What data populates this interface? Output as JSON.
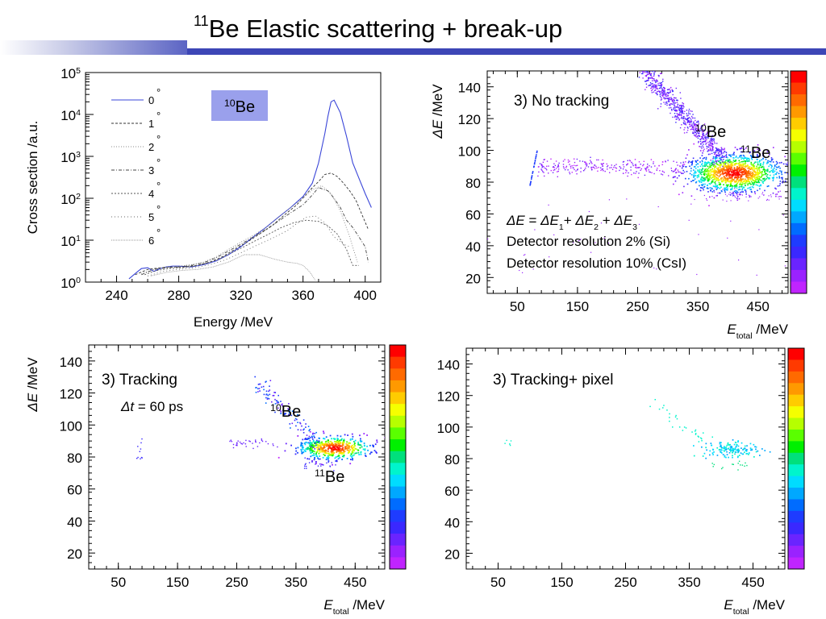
{
  "slide": {
    "title_sup": "11",
    "title_text": "Be Elastic scattering + break-up"
  },
  "colors": {
    "accent_band": "#3d46b6",
    "legend_box_bg": "#9aa0ec",
    "series0": "#3a46d8",
    "palette": [
      "#ff0000",
      "#ff3a00",
      "#ff6a00",
      "#ff9900",
      "#ffcc00",
      "#f5ff00",
      "#b6ff00",
      "#5aff00",
      "#00f000",
      "#00e07c",
      "#00f4cc",
      "#00dcff",
      "#00a8ff",
      "#006cff",
      "#1e3cff",
      "#3a28ff",
      "#6a24ff",
      "#9a22ff",
      "#c024ff"
    ]
  },
  "chart_data": [
    {
      "type": "line",
      "id": "cross-section",
      "xlabel": "Energy  /MeV",
      "ylabel": "Cross section /a.u.",
      "xlim": [
        220,
        410
      ],
      "ylim_log10": [
        0,
        5
      ],
      "xticks": [
        "240",
        "280",
        "320",
        "360",
        "400"
      ],
      "xtick_values": [
        240,
        280,
        320,
        360,
        400
      ],
      "yticks": [
        {
          "base": "10",
          "exp": "0"
        },
        {
          "base": "10",
          "exp": "1"
        },
        {
          "base": "10",
          "exp": "2"
        },
        {
          "base": "10",
          "exp": "3"
        },
        {
          "base": "10",
          "exp": "4"
        },
        {
          "base": "10",
          "exp": "5"
        }
      ],
      "annotation": {
        "sup": "10",
        "text": "Be"
      },
      "legend_degree": "°",
      "series": [
        {
          "name": "0",
          "x": [
            248,
            252,
            256,
            260,
            264,
            268,
            272,
            276,
            280,
            288,
            296,
            304,
            312,
            320,
            328,
            336,
            344,
            352,
            360,
            366,
            370,
            374,
            376,
            378,
            380,
            384,
            388,
            392,
            396,
            400,
            404
          ],
          "y": [
            1.2,
            1.6,
            2.1,
            2.2,
            1.8,
            2.1,
            2.3,
            2.4,
            2.4,
            2.3,
            2.6,
            3.2,
            4.5,
            7,
            12,
            20,
            35,
            60,
            110,
            230,
            700,
            3500,
            9000,
            20000,
            22000,
            11000,
            3000,
            700,
            300,
            130,
            60
          ]
        },
        {
          "name": "1",
          "x": [
            252,
            260,
            268,
            276,
            284,
            292,
            300,
            308,
            316,
            324,
            332,
            340,
            348,
            356,
            364,
            370,
            374,
            378,
            382,
            386,
            390,
            394,
            398,
            402
          ],
          "y": [
            1.5,
            2,
            2.2,
            2.3,
            2.3,
            2.5,
            3,
            4,
            6,
            9,
            14,
            22,
            40,
            70,
            150,
            250,
            370,
            400,
            330,
            230,
            150,
            90,
            40,
            18
          ]
        },
        {
          "name": "2",
          "x": [
            256,
            264,
            272,
            280,
            288,
            296,
            304,
            312,
            320,
            328,
            336,
            344,
            352,
            360,
            366,
            372,
            378,
            384,
            390,
            395
          ],
          "y": [
            1.6,
            2,
            2.3,
            2.4,
            2.6,
            3,
            4,
            6,
            9,
            13,
            20,
            35,
            60,
            100,
            160,
            200,
            130,
            50,
            12,
            3
          ]
        },
        {
          "name": "3",
          "x": [
            256,
            264,
            272,
            280,
            288,
            296,
            304,
            312,
            320,
            328,
            336,
            344,
            352,
            360,
            366,
            370,
            376,
            380,
            384,
            388,
            392,
            396,
            400,
            402
          ],
          "y": [
            1.5,
            2,
            2.2,
            2.3,
            2.5,
            2.9,
            3.8,
            5.5,
            8,
            12,
            18,
            28,
            45,
            70,
            120,
            180,
            150,
            100,
            60,
            30,
            20,
            12,
            7,
            3
          ]
        },
        {
          "name": "4",
          "x": [
            258,
            266,
            274,
            282,
            290,
            298,
            306,
            314,
            322,
            330,
            338,
            346,
            354,
            362,
            370,
            376,
            382,
            388,
            392,
            396
          ],
          "y": [
            1.5,
            1.9,
            2.1,
            2.2,
            2.4,
            2.8,
            3.5,
            5,
            7,
            10,
            14,
            20,
            26,
            30,
            28,
            22,
            14,
            6,
            2.5,
            2.5
          ]
        },
        {
          "name": "5",
          "x": [
            260,
            270,
            280,
            290,
            300,
            310,
            320,
            330,
            340,
            350,
            356,
            362,
            368,
            374,
            380,
            386,
            390
          ],
          "y": [
            1.4,
            1.8,
            2,
            2.2,
            2.6,
            3.4,
            5,
            7.5,
            11,
            17,
            25,
            35,
            38,
            26,
            12,
            8,
            7
          ]
        },
        {
          "name": "6",
          "x": [
            262,
            272,
            282,
            292,
            302,
            312,
            322,
            332,
            342,
            350,
            356,
            360,
            364,
            368
          ],
          "y": [
            1.4,
            1.7,
            1.9,
            2,
            2.3,
            3,
            4.5,
            4.5,
            3.5,
            3,
            2.8,
            2.5,
            1.8,
            1.1
          ]
        }
      ]
    },
    {
      "type": "heatmap",
      "id": "no-tracking",
      "title": "3) No tracking",
      "xlabel": "E",
      "xlabel_sub": "total",
      "xlabel_unit": " /MeV",
      "ylabel": "ΔE /MeV",
      "xlim": [
        0,
        500
      ],
      "ylim": [
        10,
        150
      ],
      "xticks": [
        "50",
        "150",
        "250",
        "350",
        "450"
      ],
      "xtick_values": [
        50,
        150,
        250,
        350,
        450
      ],
      "yticks": [
        "20",
        "40",
        "60",
        "80",
        "100",
        "120",
        "140"
      ],
      "ytick_values": [
        20,
        40,
        60,
        80,
        100,
        120,
        140
      ],
      "labels": [
        {
          "sup": "10",
          "text": "Be"
        },
        {
          "sup": "11",
          "text": "Be"
        }
      ],
      "notes": [
        "ΔE = ΔE1+ ΔE2 + ΔE3",
        "Detector resolution 2% (Si)",
        "Detector resolution 10% (CsI)"
      ],
      "density": "high"
    },
    {
      "type": "heatmap",
      "id": "tracking",
      "title": "3) Tracking",
      "note": "Δt = 60 ps",
      "xlabel": "E",
      "xlabel_sub": "total",
      "xlabel_unit": " /MeV",
      "ylabel": "ΔE /MeV",
      "xlim": [
        0,
        500
      ],
      "ylim": [
        10,
        150
      ],
      "xticks": [
        "50",
        "150",
        "250",
        "350",
        "450"
      ],
      "xtick_values": [
        50,
        150,
        250,
        350,
        450
      ],
      "yticks": [
        "20",
        "40",
        "60",
        "80",
        "100",
        "120",
        "140"
      ],
      "ytick_values": [
        20,
        40,
        60,
        80,
        100,
        120,
        140
      ],
      "labels": [
        {
          "sup": "10",
          "text": "Be"
        },
        {
          "sup": "11",
          "text": "Be"
        }
      ],
      "density": "medium"
    },
    {
      "type": "heatmap",
      "id": "tracking-pixel",
      "title": "3) Tracking+ pixel",
      "xlabel": "E",
      "xlabel_sub": "total",
      "xlabel_unit": " /MeV",
      "xlim": [
        0,
        500
      ],
      "ylim": [
        10,
        150
      ],
      "xticks": [
        "50",
        "150",
        "250",
        "350",
        "450"
      ],
      "xtick_values": [
        50,
        150,
        250,
        350,
        450
      ],
      "yticks": [
        "20",
        "40",
        "60",
        "80",
        "100",
        "120",
        "140"
      ],
      "ytick_values": [
        20,
        40,
        60,
        80,
        100,
        120,
        140
      ],
      "density": "low"
    }
  ]
}
